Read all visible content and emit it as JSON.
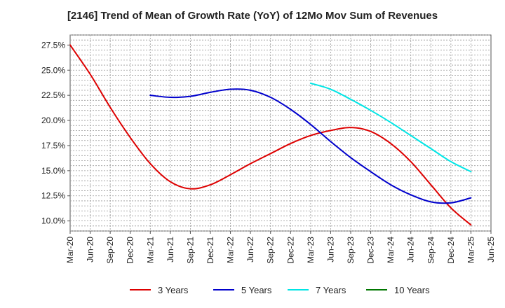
{
  "chart_data": {
    "type": "line",
    "title": "[2146]  Trend of Mean of Growth Rate (YoY) of 12Mo Mov Sum of Revenues",
    "xlabel": "",
    "ylabel": "",
    "x_ticks": [
      "Mar-20",
      "Jun-20",
      "Sep-20",
      "Dec-20",
      "Mar-21",
      "Jun-21",
      "Sep-21",
      "Dec-21",
      "Mar-22",
      "Jun-22",
      "Sep-22",
      "Dec-22",
      "Mar-23",
      "Jun-23",
      "Sep-23",
      "Dec-23",
      "Mar-24",
      "Jun-24",
      "Sep-24",
      "Dec-24",
      "Mar-25",
      "Jun-25"
    ],
    "y_ticks": [
      "10.0%",
      "12.5%",
      "15.0%",
      "17.5%",
      "20.0%",
      "22.5%",
      "25.0%",
      "27.5%"
    ],
    "y_tick_values": [
      10.0,
      12.5,
      15.0,
      17.5,
      20.0,
      22.5,
      25.0,
      27.5
    ],
    "ylim": [
      9.0,
      28.5
    ],
    "grid": true,
    "legend_position": "bottom",
    "series": [
      {
        "name": "3 Years",
        "color": "#dd0000",
        "x": [
          "Mar-20",
          "Jun-20",
          "Sep-20",
          "Dec-20",
          "Mar-21",
          "Jun-21",
          "Sep-21",
          "Dec-21",
          "Mar-22",
          "Jun-22",
          "Sep-22",
          "Dec-22",
          "Mar-23",
          "Jun-23",
          "Sep-23",
          "Dec-23",
          "Mar-24",
          "Jun-24",
          "Sep-24",
          "Dec-24",
          "Mar-25"
        ],
        "values": [
          27.5,
          24.6,
          21.3,
          18.3,
          15.7,
          13.9,
          13.2,
          13.6,
          14.6,
          15.7,
          16.7,
          17.7,
          18.5,
          19.0,
          19.3,
          18.9,
          17.7,
          15.9,
          13.6,
          11.3,
          9.6
        ]
      },
      {
        "name": "5 Years",
        "color": "#0000cc",
        "x": [
          "Mar-21",
          "Jun-21",
          "Sep-21",
          "Dec-21",
          "Mar-22",
          "Jun-22",
          "Sep-22",
          "Dec-22",
          "Mar-23",
          "Jun-23",
          "Sep-23",
          "Dec-23",
          "Mar-24",
          "Jun-24",
          "Sep-24",
          "Dec-24",
          "Mar-25"
        ],
        "values": [
          22.5,
          22.3,
          22.4,
          22.8,
          23.1,
          23.0,
          22.3,
          21.1,
          19.6,
          17.9,
          16.3,
          14.9,
          13.6,
          12.6,
          11.9,
          11.8,
          12.3
        ]
      },
      {
        "name": "7 Years",
        "color": "#00e5e5",
        "x": [
          "Mar-23",
          "Jun-23",
          "Sep-23",
          "Dec-23",
          "Mar-24",
          "Jun-24",
          "Sep-24",
          "Dec-24",
          "Mar-25"
        ],
        "values": [
          23.7,
          23.1,
          22.1,
          21.0,
          19.8,
          18.5,
          17.2,
          15.9,
          14.9
        ]
      },
      {
        "name": "10 Years",
        "color": "#007700",
        "x": [],
        "values": []
      }
    ]
  }
}
